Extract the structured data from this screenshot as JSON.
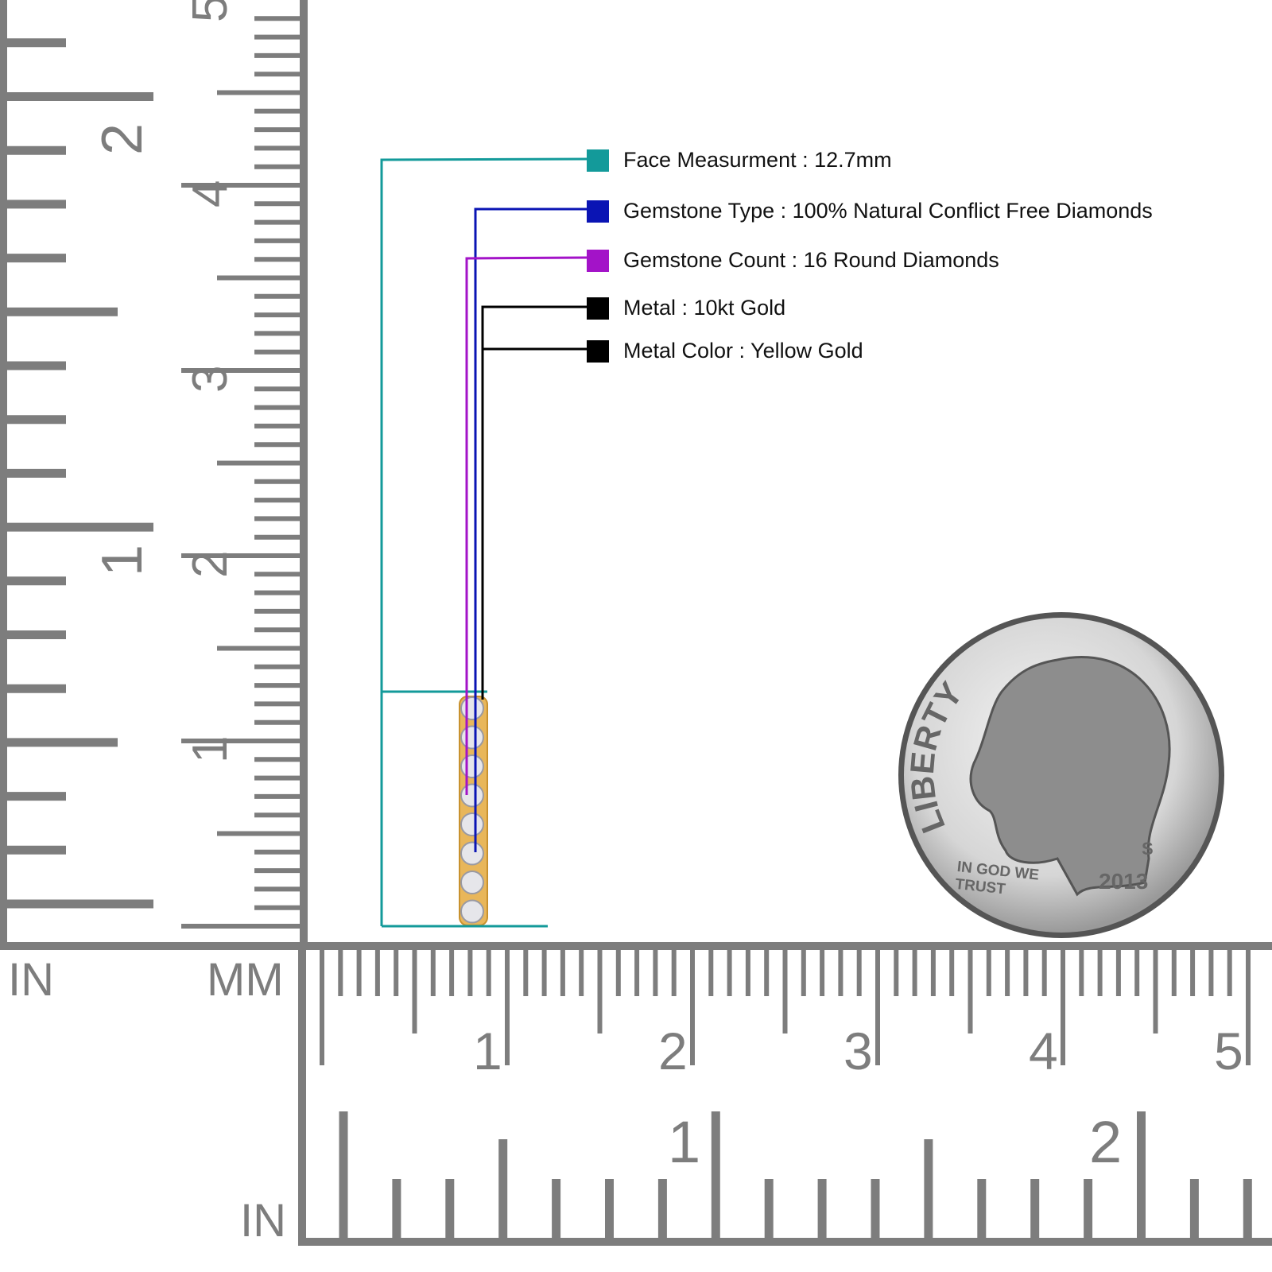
{
  "legend": [
    {
      "label": "Face Measurment : 12.7mm",
      "color": "#139a9a"
    },
    {
      "label": "Gemstone Type : 100% Natural Conflict Free Diamonds",
      "color": "#0a14b4"
    },
    {
      "label": "Gemstone Count : 16 Round Diamonds",
      "color": "#a313c8"
    },
    {
      "label": "Metal : 10kt Gold",
      "color": "#000000"
    },
    {
      "label": "Metal Color : Yellow Gold",
      "color": "#000000"
    }
  ],
  "rulers": {
    "left_unit": "IN",
    "mm_unit": "MM",
    "bottom_unit": "IN",
    "vertical_mm_labels": [
      "1",
      "2",
      "3",
      "4",
      "5"
    ],
    "vertical_in_labels": [
      "1",
      "2"
    ],
    "horizontal_mm_labels": [
      "1",
      "2",
      "3",
      "4",
      "5"
    ],
    "horizontal_in_labels": [
      "1",
      "2"
    ],
    "color": "#7d7d7d"
  },
  "product": {
    "metal_color": "#e8b65a"
  },
  "coin": {
    "legend": "LIBERTY",
    "motto": "IN GOD WE TRUST",
    "year": "2013",
    "mint_mark": "S"
  }
}
